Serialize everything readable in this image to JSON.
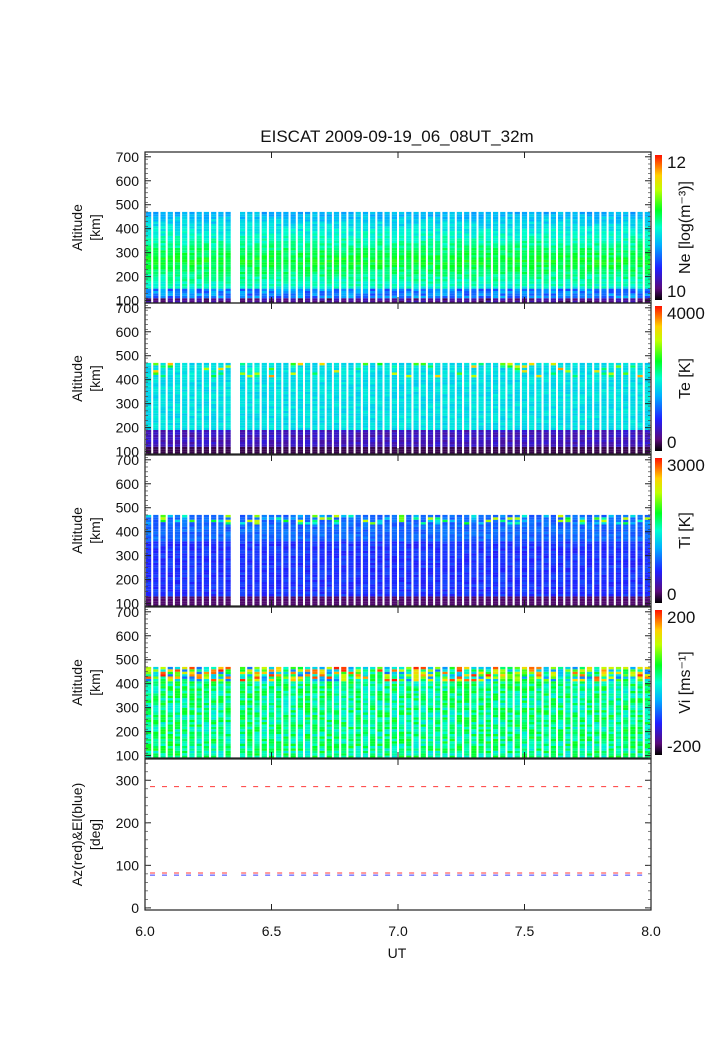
{
  "chart_data": {
    "type": "heatmap",
    "title": "EISCAT 2009-09-19_06_08UT_32m",
    "xlabel": "UT",
    "xlim": [
      6.0,
      8.0
    ],
    "xticks": [
      "6.0",
      "6.5",
      "7.0",
      "7.5",
      "8.0"
    ],
    "data_gap": [
      6.33,
      6.38
    ],
    "panels": [
      {
        "name": "ne",
        "ylabel": [
          "Altitude",
          "[km]"
        ],
        "ylim": [
          90,
          720
        ],
        "yticks": [
          "100",
          "200",
          "300",
          "400",
          "500",
          "600",
          "700"
        ],
        "colorbar_label": "Ne [log(m^-3)]",
        "colorbar_range": [
          "10",
          "12"
        ],
        "alt_range": [
          90,
          470
        ],
        "profile": "ne"
      },
      {
        "name": "te",
        "ylabel": [
          "Altitude",
          "[km]"
        ],
        "ylim": [
          90,
          720
        ],
        "yticks": [
          "100",
          "200",
          "300",
          "400",
          "500",
          "600",
          "700"
        ],
        "colorbar_label": "Te [K]",
        "colorbar_range": [
          "0",
          "4000"
        ],
        "alt_range": [
          90,
          470
        ],
        "profile": "te"
      },
      {
        "name": "ti",
        "ylabel": [
          "Altitude",
          "[km]"
        ],
        "ylim": [
          90,
          720
        ],
        "yticks": [
          "100",
          "200",
          "300",
          "400",
          "500",
          "600",
          "700"
        ],
        "colorbar_label": "Ti [K]",
        "colorbar_range": [
          "0",
          "3000"
        ],
        "alt_range": [
          90,
          470
        ],
        "profile": "ti"
      },
      {
        "name": "vi",
        "ylabel": [
          "Altitude",
          "[km]"
        ],
        "ylim": [
          90,
          720
        ],
        "yticks": [
          "100",
          "200",
          "300",
          "400",
          "500",
          "600",
          "700"
        ],
        "colorbar_label": "Vi [ms^-1]",
        "colorbar_range": [
          "-200",
          "200"
        ],
        "alt_range": [
          90,
          470
        ],
        "profile": "vi"
      }
    ],
    "pointing_panel": {
      "ylabel": [
        "Az(red)&El(blue)",
        "[deg]"
      ],
      "ylim": [
        -5,
        350
      ],
      "yticks": [
        "0",
        "100",
        "200",
        "300"
      ],
      "series": [
        {
          "name": "Az",
          "color": "#ff3a3a",
          "values": [
            285,
            82
          ]
        },
        {
          "name": "El",
          "color": "#3a3aff",
          "values": [
            77
          ]
        }
      ]
    }
  }
}
